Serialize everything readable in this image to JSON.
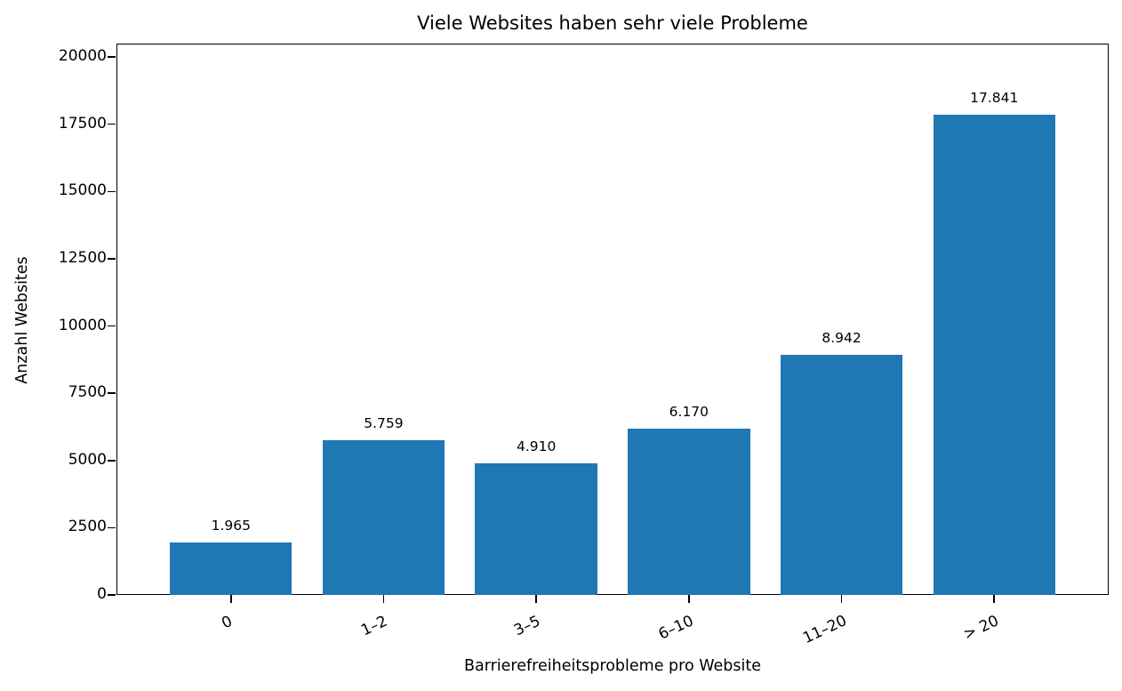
{
  "chart_data": {
    "type": "bar",
    "title": "Viele Websites haben sehr viele Probleme",
    "xlabel": "Barrierefreiheitsprobleme pro Website",
    "ylabel": "Anzahl Websites",
    "categories": [
      "0",
      "1–2",
      "3–5",
      "6–10",
      "11–20",
      "> 20"
    ],
    "values": [
      1965,
      5759,
      4910,
      6170,
      8942,
      17841
    ],
    "value_labels": [
      "1.965",
      "5.759",
      "4.910",
      "6.170",
      "8.942",
      "17.841"
    ],
    "ylim": [
      0,
      20500
    ],
    "yticks": [
      0,
      2500,
      5000,
      7500,
      10000,
      12500,
      15000,
      17500,
      20000
    ],
    "ytick_labels": [
      "0",
      "2500",
      "5000",
      "7500",
      "10000",
      "12500",
      "15000",
      "17500",
      "20000"
    ],
    "grid": false,
    "legend": null,
    "bar_color": "#1f77b4",
    "xtick_rotation": -25
  }
}
